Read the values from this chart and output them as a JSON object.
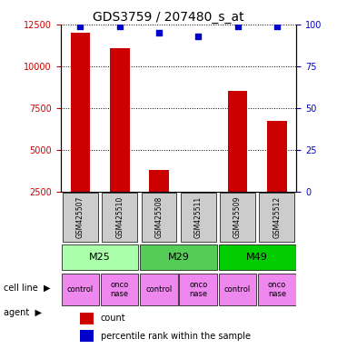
{
  "title": "GDS3759 / 207480_s_at",
  "samples": [
    "GSM425507",
    "GSM425510",
    "GSM425508",
    "GSM425511",
    "GSM425509",
    "GSM425512"
  ],
  "counts": [
    12000,
    11100,
    3800,
    2200,
    8500,
    6700
  ],
  "percentiles": [
    99,
    99,
    95,
    93,
    99,
    99
  ],
  "ylim_left": [
    2500,
    12500
  ],
  "ylim_right": [
    0,
    100
  ],
  "yticks_left": [
    2500,
    5000,
    7500,
    10000,
    12500
  ],
  "yticks_right": [
    0,
    25,
    50,
    75,
    100
  ],
  "bar_color": "#cc0000",
  "dot_color": "#0000cc",
  "cell_lines": [
    {
      "label": "M25",
      "cols": [
        0,
        1
      ],
      "color": "#aaffaa"
    },
    {
      "label": "M29",
      "cols": [
        2,
        3
      ],
      "color": "#55cc55"
    },
    {
      "label": "M49",
      "cols": [
        4,
        5
      ],
      "color": "#00cc00"
    }
  ],
  "agents": [
    "control",
    "onconase",
    "control",
    "onconase",
    "control",
    "onconase"
  ],
  "agent_color": "#ee88ee",
  "gsm_bg_color": "#cccccc",
  "legend_items": [
    {
      "color": "#cc0000",
      "label": "count"
    },
    {
      "color": "#0000cc",
      "label": "percentile rank within the sample"
    }
  ],
  "left_label_color": "#cc0000",
  "right_label_color": "#0000cc"
}
